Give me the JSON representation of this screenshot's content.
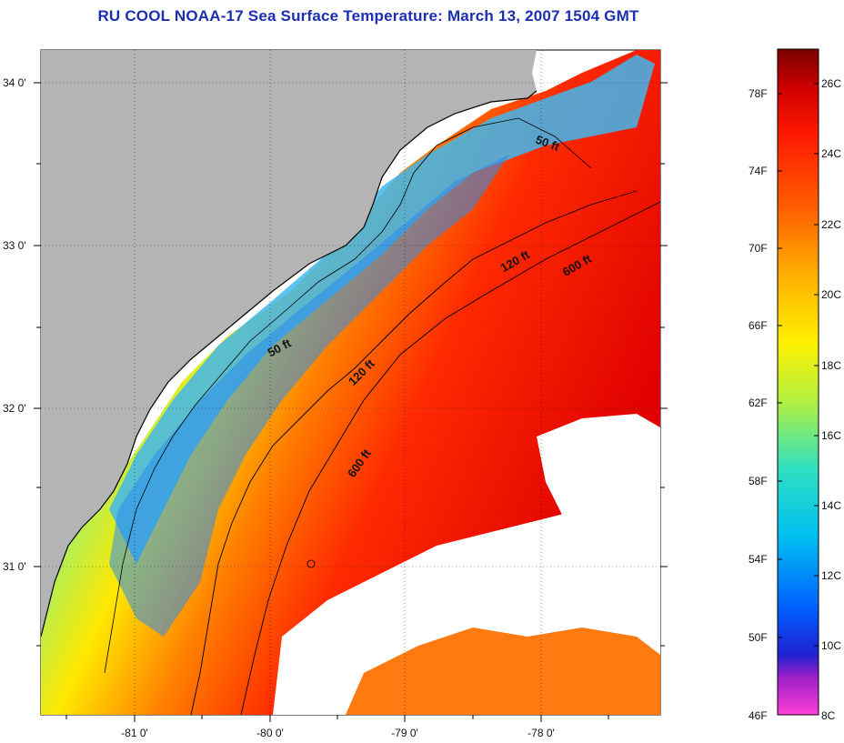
{
  "title": "RU COOL  NOAA-17  Sea Surface Temperature:  March 13, 2007 1504 GMT",
  "map": {
    "lat_ticks": [
      {
        "label": "34 0'",
        "value": 34.0
      },
      {
        "label": "33 0'",
        "value": 33.0
      },
      {
        "label": "32 0'",
        "value": 32.0
      },
      {
        "label": "31 0'",
        "value": 31.0
      }
    ],
    "lon_ticks": [
      {
        "label": "-81 0'",
        "value": -81.0
      },
      {
        "label": "-80 0'",
        "value": -80.0
      },
      {
        "label": "-79 0'",
        "value": -79.0
      },
      {
        "label": "-78 0'",
        "value": -78.0
      }
    ],
    "contours": [
      {
        "label": "50 ft"
      },
      {
        "label": "50 ft"
      },
      {
        "label": "120 ft"
      },
      {
        "label": "120 ft"
      },
      {
        "label": "600 ft"
      },
      {
        "label": "600 ft"
      }
    ]
  },
  "colorbar": {
    "fahrenheit_labels": [
      "78F",
      "74F",
      "70F",
      "66F",
      "62F",
      "58F",
      "54F",
      "50F",
      "46F"
    ],
    "celsius_labels": [
      "26C",
      "24C",
      "22C",
      "20C",
      "18C",
      "16C",
      "14C",
      "12C",
      "10C",
      "8C"
    ]
  }
}
